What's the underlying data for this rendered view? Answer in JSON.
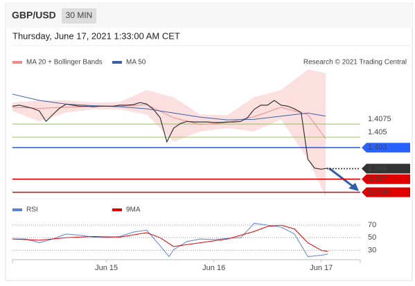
{
  "header": {
    "symbol": "GBP/USD",
    "interval": "30 MIN",
    "datetime": "Thursday, June 17, 2021 1:33:00 AM CET"
  },
  "chart_data": [
    {
      "type": "line",
      "credit": "Research © 2021 Trading Central",
      "xlim": [
        0,
        155
      ],
      "ylim": [
        1.393,
        1.419
      ],
      "color": "#333333",
      "x": [
        0,
        3,
        6,
        9,
        12,
        15,
        18,
        21,
        24,
        27,
        30,
        33,
        36,
        39,
        42,
        45,
        48,
        51,
        54,
        57,
        60,
        63,
        66,
        69,
        72,
        75,
        78,
        81,
        84,
        87,
        90,
        93,
        96,
        99,
        102,
        105,
        108,
        111,
        114,
        117,
        120,
        123,
        126,
        129,
        132,
        135,
        138,
        141
      ],
      "values": [
        1.4109,
        1.4111,
        1.4108,
        1.4105,
        1.41,
        1.408,
        1.4093,
        1.4105,
        1.4113,
        1.4111,
        1.4109,
        1.4109,
        1.4108,
        1.4109,
        1.4109,
        1.4109,
        1.4111,
        1.4111,
        1.4112,
        1.4116,
        1.4113,
        1.4103,
        1.4087,
        1.4041,
        1.4067,
        1.4076,
        1.408,
        1.4079,
        1.4079,
        1.4079,
        1.4078,
        1.4078,
        1.4079,
        1.4079,
        1.408,
        1.4087,
        1.4103,
        1.4111,
        1.4111,
        1.412,
        1.4111,
        1.4109,
        1.4104,
        1.4097,
        1.4008,
        1.3991,
        1.3989,
        1.3991
      ],
      "series": [
        {
          "name": "MA 20 + Bollinger Bands",
          "color": "#f08a8a",
          "band_color": "#fbd3d3",
          "x": [
            0,
            12,
            24,
            36,
            48,
            60,
            72,
            84,
            96,
            108,
            120,
            132,
            140
          ],
          "values": [
            1.4107,
            1.4105,
            1.4107,
            1.4109,
            1.4109,
            1.4112,
            1.4087,
            1.4074,
            1.4078,
            1.4089,
            1.4107,
            1.4093,
            1.4047
          ],
          "upper": [
            1.4116,
            1.412,
            1.412,
            1.4116,
            1.4117,
            1.414,
            1.4126,
            1.4093,
            1.4092,
            1.4126,
            1.414,
            1.4179,
            1.4172
          ],
          "lower": [
            1.41,
            1.408,
            1.4097,
            1.4103,
            1.4103,
            1.4093,
            1.4041,
            1.4061,
            1.4067,
            1.4061,
            1.4084,
            1.4008,
            1.3936
          ]
        },
        {
          "name": "MA 50",
          "color": "#3a5fa8",
          "x": [
            0,
            12,
            24,
            36,
            48,
            60,
            72,
            84,
            96,
            108,
            120,
            132,
            140
          ],
          "values": [
            1.4132,
            1.412,
            1.4113,
            1.411,
            1.4108,
            1.4104,
            1.4096,
            1.4088,
            1.4083,
            1.4084,
            1.409,
            1.4096,
            1.409
          ]
        }
      ],
      "levels": [
        {
          "value": 1.4075,
          "color": "#8bc34a",
          "tag": false,
          "style": "solid"
        },
        {
          "value": 1.405,
          "color": "#8bc34a",
          "tag": false,
          "style": "solid"
        },
        {
          "value": 1.403,
          "color": "#2962ff",
          "tag": true,
          "style": "solid"
        },
        {
          "value": 1.399,
          "color": "#333333",
          "tag": true,
          "style": "dotted"
        },
        {
          "value": 1.397,
          "color": "#e00000",
          "tag": true,
          "style": "solid"
        },
        {
          "value": 1.3945,
          "color": "#e00000",
          "tag": true,
          "style": "solid"
        }
      ]
    },
    {
      "type": "line",
      "xlim": [
        0,
        155
      ],
      "ylim": [
        15,
        100
      ],
      "yticks": [
        70,
        50,
        30
      ],
      "xticks": [
        {
          "value": 42,
          "label": "Jun 15"
        },
        {
          "value": 90,
          "label": "Jun 16"
        },
        {
          "value": 138,
          "label": "Jun 17"
        }
      ],
      "series": [
        {
          "name": "RSI",
          "color": "#5b7fe0",
          "x": [
            0,
            6,
            12,
            18,
            24,
            30,
            36,
            42,
            48,
            54,
            60,
            66,
            70,
            72,
            78,
            84,
            90,
            96,
            102,
            108,
            114,
            120,
            126,
            132,
            138,
            141
          ],
          "values": [
            48,
            48,
            42,
            48,
            56,
            54,
            51,
            50,
            52,
            59,
            62,
            37,
            20,
            31,
            44,
            48,
            47,
            49,
            50,
            73,
            70,
            67,
            56,
            20,
            22,
            24
          ]
        },
        {
          "name": "9MA",
          "color": "#e00000",
          "x": [
            0,
            12,
            24,
            36,
            48,
            60,
            66,
            72,
            84,
            96,
            108,
            114,
            120,
            126,
            132,
            138,
            141
          ],
          "values": [
            48,
            46,
            50,
            52,
            51,
            58,
            50,
            36,
            42,
            48,
            60,
            68,
            70,
            64,
            42,
            30,
            28
          ]
        }
      ]
    }
  ]
}
